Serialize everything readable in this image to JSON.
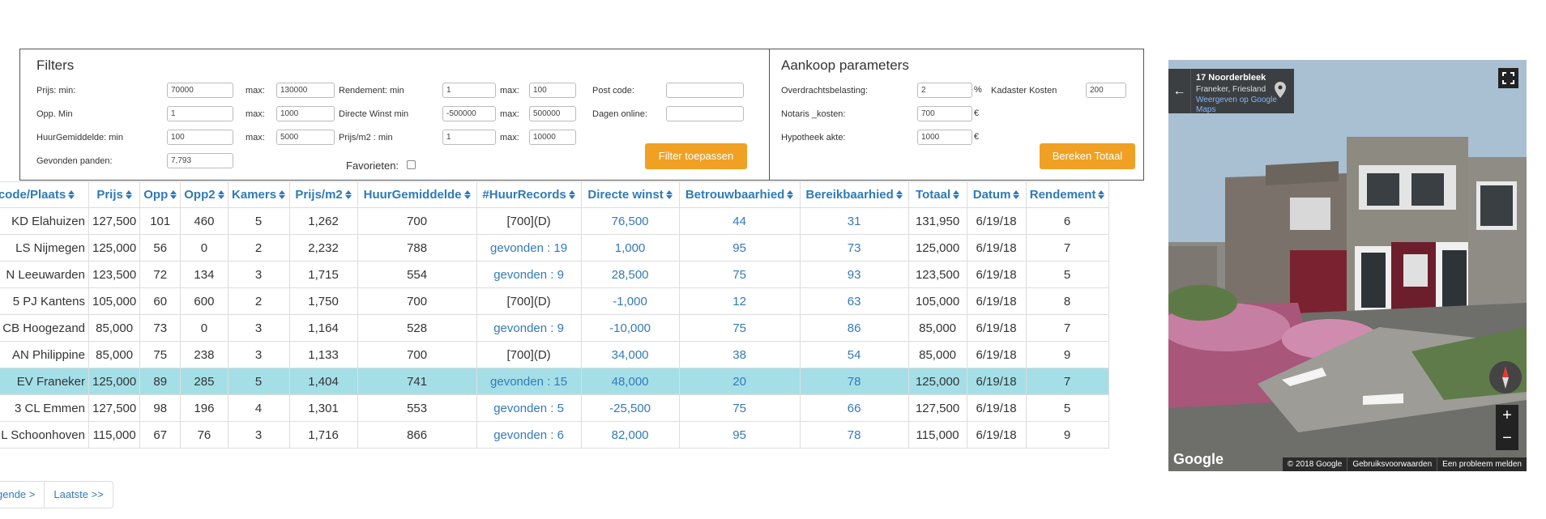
{
  "filters": {
    "title": "Filters",
    "prijs_min_label": "Prijs: min:",
    "prijs_min": "70000",
    "max_label": "max:",
    "prijs_max": "130000",
    "opp_min_label": "Opp. Min",
    "opp_min": "1",
    "opp_max": "1000",
    "huur_label": "HuurGemiddelde: min",
    "huur_min": "100",
    "huur_max": "5000",
    "gevonden_label": "Gevonden panden:",
    "gevonden": "7,793",
    "rendement_label": "Rendement: min",
    "rendement_min": "1",
    "rendement_max": "100",
    "winst_label": "Directe Winst min",
    "winst_min": "-500000",
    "winst_max": "500000",
    "prijsm2_label": "Prijs/m2 : min",
    "prijsm2_min": "1",
    "prijsm2_max": "10000",
    "favorieten_label": "Favorieten:",
    "postcode_label": "Post code:",
    "postcode": "",
    "dagen_label": "Dagen online:",
    "dagen": "",
    "apply_label": "Filter toepassen"
  },
  "aankoop": {
    "title": "Aankoop parameters",
    "overdracht_label": "Overdrachtsbelasting:",
    "overdracht": "2",
    "percent": "%",
    "kadaster_label": "Kadaster Kosten",
    "kadaster": "200",
    "notaris_label": "Notaris _kosten:",
    "notaris": "700",
    "euro": "€",
    "hypotheek_label": "Hypotheek akte:",
    "hypotheek": "1000",
    "bereken_label": "Bereken Totaal"
  },
  "table": {
    "headers": [
      "code/Plaats",
      "Prijs",
      "Opp",
      "Opp2",
      "Kamers",
      "Prijs/m2",
      "HuurGemiddelde",
      "#HuurRecords",
      "Directe winst",
      "Betrouwbaarhied",
      "Bereikbaarhied",
      "Totaal",
      "Datum",
      "Rendement"
    ],
    "rows": [
      {
        "plaats": "KD Elahuizen",
        "prijs": "127,500",
        "opp": "101",
        "opp2": "460",
        "kamers": "5",
        "prijsm2": "1,262",
        "huur": "700",
        "records": "[700](D)",
        "winst": "76,500",
        "betrouw": "44",
        "bereik": "31",
        "totaal": "131,950",
        "datum": "6/19/18",
        "rendement": "6",
        "records_link": false
      },
      {
        "plaats": "LS Nijmegen",
        "prijs": "125,000",
        "opp": "56",
        "opp2": "0",
        "kamers": "2",
        "prijsm2": "2,232",
        "huur": "788",
        "records": "gevonden : 19",
        "winst": "1,000",
        "betrouw": "95",
        "bereik": "73",
        "totaal": "125,000",
        "datum": "6/19/18",
        "rendement": "7",
        "records_link": true
      },
      {
        "plaats": "N Leeuwarden",
        "prijs": "123,500",
        "opp": "72",
        "opp2": "134",
        "kamers": "3",
        "prijsm2": "1,715",
        "huur": "554",
        "records": "gevonden : 9",
        "winst": "28,500",
        "betrouw": "75",
        "bereik": "93",
        "totaal": "123,500",
        "datum": "6/19/18",
        "rendement": "5",
        "records_link": true
      },
      {
        "plaats": "5 PJ Kantens",
        "prijs": "105,000",
        "opp": "60",
        "opp2": "600",
        "kamers": "2",
        "prijsm2": "1,750",
        "huur": "700",
        "records": "[700](D)",
        "winst": "-1,000",
        "betrouw": "12",
        "bereik": "63",
        "totaal": "105,000",
        "datum": "6/19/18",
        "rendement": "8",
        "records_link": false
      },
      {
        "plaats": "CB Hoogezand",
        "prijs": "85,000",
        "opp": "73",
        "opp2": "0",
        "kamers": "3",
        "prijsm2": "1,164",
        "huur": "528",
        "records": "gevonden : 9",
        "winst": "-10,000",
        "betrouw": "75",
        "bereik": "86",
        "totaal": "85,000",
        "datum": "6/19/18",
        "rendement": "7",
        "records_link": true
      },
      {
        "plaats": "AN Philippine",
        "prijs": "85,000",
        "opp": "75",
        "opp2": "238",
        "kamers": "3",
        "prijsm2": "1,133",
        "huur": "700",
        "records": "[700](D)",
        "winst": "34,000",
        "betrouw": "38",
        "bereik": "54",
        "totaal": "85,000",
        "datum": "6/19/18",
        "rendement": "9",
        "records_link": false
      },
      {
        "plaats": "EV Franeker",
        "prijs": "125,000",
        "opp": "89",
        "opp2": "285",
        "kamers": "5",
        "prijsm2": "1,404",
        "huur": "741",
        "records": "gevonden : 15",
        "winst": "48,000",
        "betrouw": "20",
        "bereik": "78",
        "totaal": "125,000",
        "datum": "6/19/18",
        "rendement": "7",
        "records_link": true,
        "selected": true
      },
      {
        "plaats": "3 CL Emmen",
        "prijs": "127,500",
        "opp": "98",
        "opp2": "196",
        "kamers": "4",
        "prijsm2": "1,301",
        "huur": "553",
        "records": "gevonden : 5",
        "winst": "-25,500",
        "betrouw": "75",
        "bereik": "66",
        "totaal": "127,500",
        "datum": "6/19/18",
        "rendement": "5",
        "records_link": true
      },
      {
        "plaats": "L Schoonhoven",
        "prijs": "115,000",
        "opp": "67",
        "opp2": "76",
        "kamers": "3",
        "prijsm2": "1,716",
        "huur": "866",
        "records": "gevonden : 6",
        "winst": "82,000",
        "betrouw": "95",
        "bereik": "78",
        "totaal": "115,000",
        "datum": "6/19/18",
        "rendement": "9",
        "records_link": true
      }
    ]
  },
  "pager": {
    "next": "gende >",
    "last": "Laatste >>"
  },
  "streetview": {
    "title": "17 Noorderbleek",
    "subtitle": "Franeker, Friesland",
    "link": "Weergeven op Google Maps",
    "logo": "Google",
    "copyright": "© 2018 Google",
    "terms": "Gebruiksvoorwaarden",
    "report": "Een probleem melden",
    "zoom_in": "+",
    "zoom_out": "−",
    "back": "←"
  }
}
